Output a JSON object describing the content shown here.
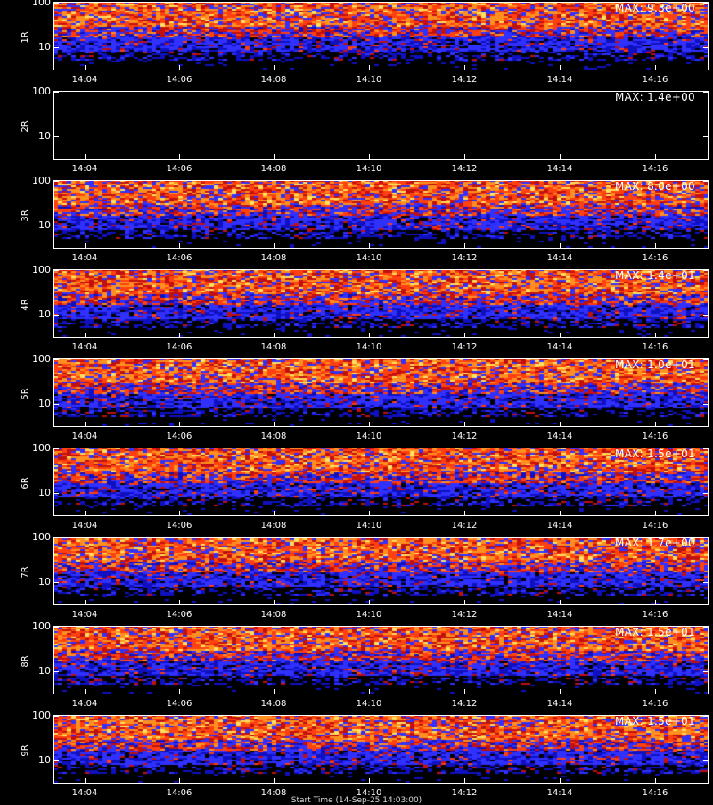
{
  "chart_data": [
    {
      "type": "heatmap",
      "channel": "1R",
      "max_label": "MAX: 9.3e+00",
      "y_ticks": [
        "100",
        "10"
      ],
      "x_ticks": [
        "14:04",
        "14:06",
        "14:08",
        "14:10",
        "14:12",
        "14:14",
        "14:16"
      ],
      "y_scale": "log"
    },
    {
      "type": "heatmap",
      "channel": "2R",
      "max_label": "MAX: 1.4e+00",
      "y_ticks": [
        "100",
        "10"
      ],
      "x_ticks": [
        "14:04",
        "14:06",
        "14:08",
        "14:10",
        "14:12",
        "14:14",
        "14:16"
      ],
      "y_scale": "log"
    },
    {
      "type": "heatmap",
      "channel": "3R",
      "max_label": "MAX: 8.0e+00",
      "y_ticks": [
        "100",
        "10"
      ],
      "x_ticks": [
        "14:04",
        "14:06",
        "14:08",
        "14:10",
        "14:12",
        "14:14",
        "14:16"
      ],
      "y_scale": "log"
    },
    {
      "type": "heatmap",
      "channel": "4R",
      "max_label": "MAX: 1.4e+01",
      "y_ticks": [
        "100",
        "10"
      ],
      "x_ticks": [
        "14:04",
        "14:06",
        "14:08",
        "14:10",
        "14:12",
        "14:14",
        "14:16"
      ],
      "y_scale": "log"
    },
    {
      "type": "heatmap",
      "channel": "5R",
      "max_label": "MAX: 1.0e+01",
      "y_ticks": [
        "100",
        "10"
      ],
      "x_ticks": [
        "14:04",
        "14:06",
        "14:08",
        "14:10",
        "14:12",
        "14:14",
        "14:16"
      ],
      "y_scale": "log"
    },
    {
      "type": "heatmap",
      "channel": "6R",
      "max_label": "MAX: 1.5e+01",
      "y_ticks": [
        "100",
        "10"
      ],
      "x_ticks": [
        "14:04",
        "14:06",
        "14:08",
        "14:10",
        "14:12",
        "14:14",
        "14:16"
      ],
      "y_scale": "log"
    },
    {
      "type": "heatmap",
      "channel": "7R",
      "max_label": "MAX: 1.7e+00",
      "y_ticks": [
        "100",
        "10"
      ],
      "x_ticks": [
        "14:04",
        "14:06",
        "14:08",
        "14:10",
        "14:12",
        "14:14",
        "14:16"
      ],
      "y_scale": "log"
    },
    {
      "type": "heatmap",
      "channel": "8R",
      "max_label": "MAX: 1.5e+01",
      "y_ticks": [
        "100",
        "10"
      ],
      "x_ticks": [
        "14:04",
        "14:06",
        "14:08",
        "14:10",
        "14:12",
        "14:14",
        "14:16"
      ],
      "y_scale": "log"
    },
    {
      "type": "heatmap",
      "channel": "9R",
      "max_label": "MAX: 1.5e+01",
      "y_ticks": [
        "100",
        "10"
      ],
      "x_ticks": [
        "14:04",
        "14:06",
        "14:08",
        "14:10",
        "14:12",
        "14:14",
        "14:16"
      ],
      "y_scale": "log"
    }
  ],
  "colors": {
    "background": "#000000",
    "axis": "#ffffff",
    "colormap": [
      "#000000",
      "#1010c0",
      "#3030ff",
      "#c01010",
      "#ff4010",
      "#ff9020",
      "#ffe060"
    ]
  },
  "footer": "Start Time (14-Sep-25 14:03:00)"
}
